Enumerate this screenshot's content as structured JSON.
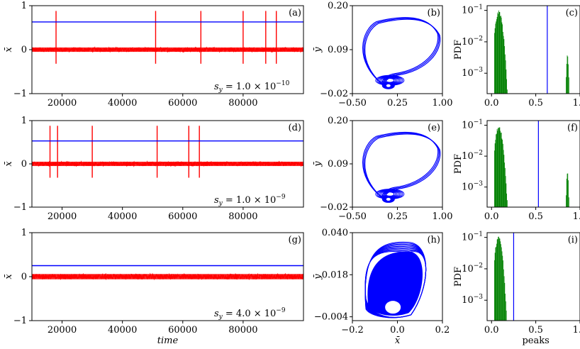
{
  "chart_data": [
    {
      "id": "a",
      "type": "line",
      "panel_label": "(a)",
      "ylabel": "x̄",
      "xlabel": "",
      "xlim": [
        10000,
        100000
      ],
      "ylim": [
        -1,
        1
      ],
      "xticks": [
        "20000",
        "40000",
        "60000",
        "80000"
      ],
      "yticks": [
        "−1",
        "0",
        "1"
      ],
      "annotation": "s_y = 1.0 × 10^-10",
      "annotation_parts": {
        "pre": "s",
        "sub": "y",
        "mid": " = 1.0 × 10",
        "sup": "−10"
      },
      "series": [
        {
          "color": "#ff0000",
          "noise_band": [
            -0.05,
            0.05
          ],
          "spikes_x": [
            18000,
            51000,
            66000,
            80000,
            87500,
            91000
          ],
          "spike_range": [
            -0.32,
            0.88
          ]
        },
        {
          "color": "#0000ff",
          "hline": 0.63
        }
      ]
    },
    {
      "id": "b",
      "type": "scatter",
      "panel_label": "(b)",
      "ylabel": "ȳ",
      "xlabel": "",
      "xlim": [
        -0.5,
        1.0
      ],
      "ylim": [
        -0.02,
        0.2
      ],
      "xticks": [
        "−0.50",
        "0.25",
        "1.00"
      ],
      "yticks": [
        "−0.02",
        "0.09",
        "0.20"
      ],
      "color": "#0000ff"
    },
    {
      "id": "c",
      "type": "bar",
      "panel_label": "(c)",
      "ylabel": "PDF",
      "xlabel": "",
      "xlim": [
        -0.05,
        1.0
      ],
      "yscale": "log",
      "xticks": [
        "0.0",
        "0.5",
        "1.0"
      ],
      "yticks": [
        "10^-1",
        "10^-2",
        "10^-3"
      ],
      "histograms": [
        {
          "color": "#008000",
          "x_range": [
            0.03,
            0.18
          ],
          "peak": 0.1
        },
        {
          "color": "#008000",
          "x_range": [
            0.84,
            0.89
          ],
          "peak": 0.0045
        }
      ],
      "vline": {
        "color": "#0000ff",
        "x": 0.63
      }
    },
    {
      "id": "d",
      "type": "line",
      "panel_label": "(d)",
      "ylabel": "x̄",
      "xlabel": "",
      "xlim": [
        10000,
        100000
      ],
      "ylim": [
        -1,
        1
      ],
      "xticks": [
        "20000",
        "40000",
        "60000",
        "80000"
      ],
      "yticks": [
        "−1",
        "0",
        "1"
      ],
      "annotation": "s_y = 1.0 × 10^-9",
      "annotation_parts": {
        "pre": "s",
        "sub": "y",
        "mid": " = 1.0 × 10",
        "sup": "−9"
      },
      "series": [
        {
          "color": "#ff0000",
          "noise_band": [
            -0.05,
            0.05
          ],
          "spikes_x": [
            16000,
            18500,
            30000,
            51500,
            62000,
            65500
          ],
          "spike_range": [
            -0.32,
            0.88
          ]
        },
        {
          "color": "#0000ff",
          "hline": 0.53
        }
      ]
    },
    {
      "id": "e",
      "type": "scatter",
      "panel_label": "(e)",
      "ylabel": "ȳ",
      "xlabel": "",
      "xlim": [
        -0.5,
        1.0
      ],
      "ylim": [
        -0.02,
        0.2
      ],
      "xticks": [
        "−0.50",
        "0.25",
        "1.00"
      ],
      "yticks": [
        "−0.02",
        "0.09",
        "0.20"
      ],
      "color": "#0000ff"
    },
    {
      "id": "f",
      "type": "bar",
      "panel_label": "(f)",
      "ylabel": "PDF",
      "xlabel": "",
      "xlim": [
        -0.05,
        1.0
      ],
      "yscale": "log",
      "xticks": [
        "0.0",
        "0.5",
        "1.0"
      ],
      "yticks": [
        "10^-1",
        "10^-2",
        "10^-3"
      ],
      "histograms": [
        {
          "color": "#008000",
          "x_range": [
            0.03,
            0.18
          ],
          "peak": 0.1
        },
        {
          "color": "#008000",
          "x_range": [
            0.84,
            0.89
          ],
          "peak": 0.0035
        }
      ],
      "vline": {
        "color": "#0000ff",
        "x": 0.53
      }
    },
    {
      "id": "g",
      "type": "line",
      "panel_label": "(g)",
      "ylabel": "x̄",
      "xlabel": "time",
      "xlim": [
        10000,
        100000
      ],
      "ylim": [
        -1,
        1
      ],
      "xticks": [
        "20000",
        "40000",
        "60000",
        "80000"
      ],
      "yticks": [
        "−1",
        "0",
        "1"
      ],
      "annotation": "s_y = 4.0 × 10^-9",
      "annotation_parts": {
        "pre": "s",
        "sub": "y",
        "mid": " = 4.0 × 10",
        "sup": "−9"
      },
      "series": [
        {
          "color": "#ff0000",
          "noise_band": [
            -0.06,
            0.06
          ],
          "spikes_x": [],
          "spike_range": [
            -0.1,
            0.1
          ]
        },
        {
          "color": "#0000ff",
          "hline": 0.25
        }
      ]
    },
    {
      "id": "h",
      "type": "scatter",
      "panel_label": "(h)",
      "ylabel": "ȳ",
      "xlabel": "x̄",
      "xlim": [
        -0.2,
        0.2
      ],
      "ylim": [
        -0.006,
        0.04
      ],
      "xticks": [
        "−0.2",
        "0.0",
        "0.2"
      ],
      "yticks": [
        "−0.004",
        "0.018",
        "0.040"
      ],
      "color": "#0000ff"
    },
    {
      "id": "i",
      "type": "bar",
      "panel_label": "(i)",
      "ylabel": "PDF",
      "xlabel": "peaks",
      "xlim": [
        -0.05,
        1.0
      ],
      "yscale": "log",
      "xticks": [
        "0.0",
        "0.5",
        "1.0"
      ],
      "yticks": [
        "10^-1",
        "10^-2",
        "10^-3"
      ],
      "histograms": [
        {
          "color": "#008000",
          "x_range": [
            0.03,
            0.17
          ],
          "peak": 0.12
        }
      ],
      "vline": {
        "color": "#0000ff",
        "x": 0.25
      }
    }
  ]
}
